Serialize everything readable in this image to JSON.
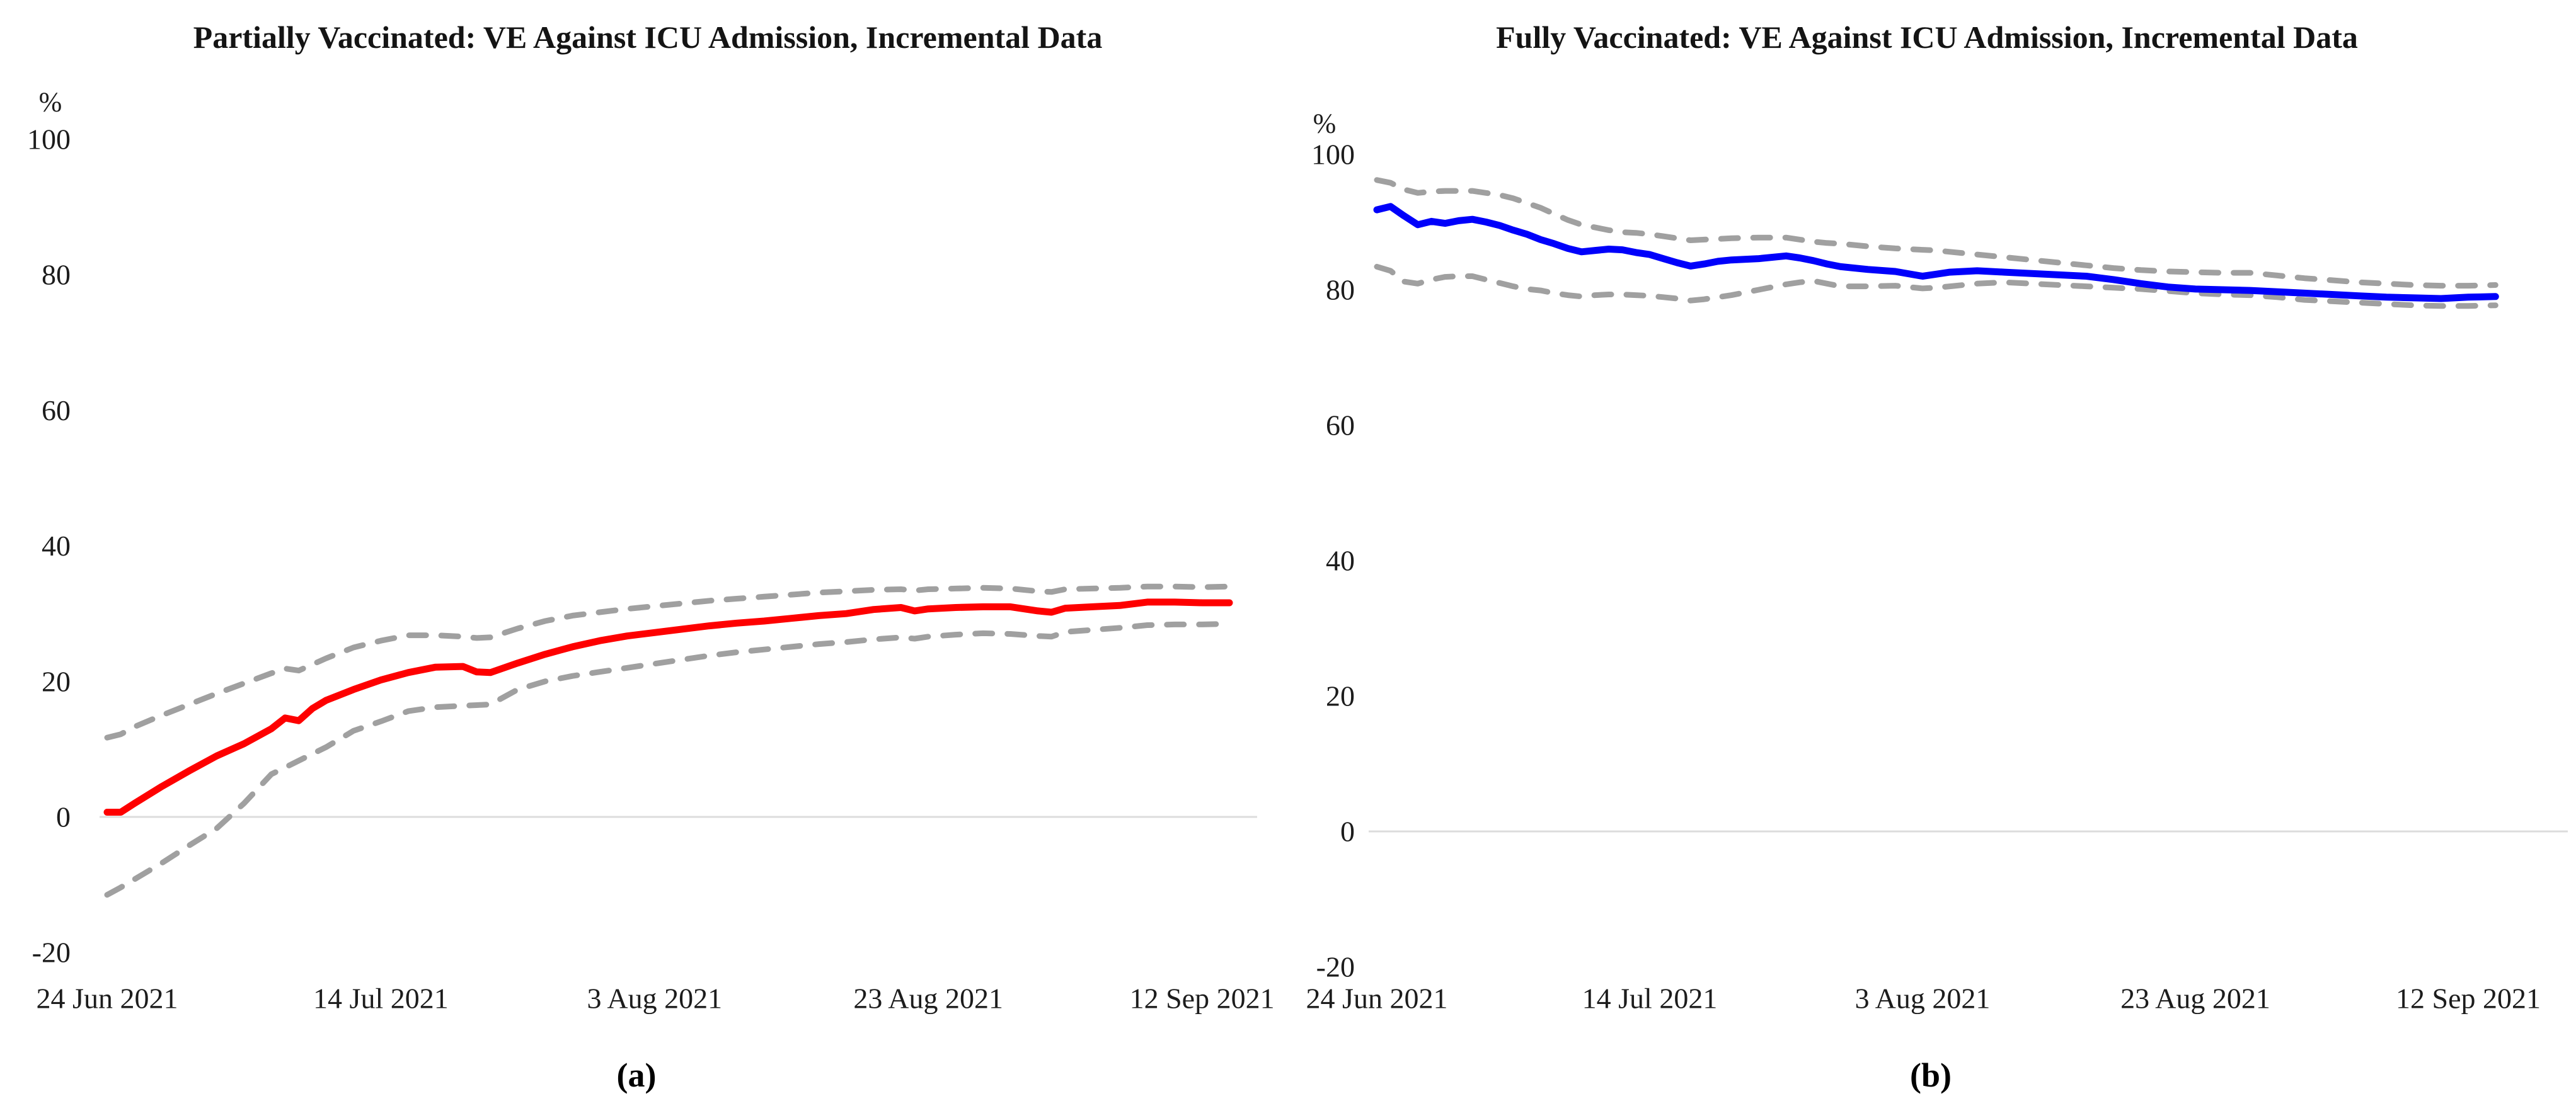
{
  "figure": {
    "captions": [
      "(a)",
      "(b)"
    ],
    "background_color": "#ffffff",
    "zero_gridline_color": "#dcdcdc",
    "ci_line_color": "#a0a0a0",
    "text_color": "#141414"
  },
  "chart_data": [
    {
      "type": "line",
      "title": "Partially Vaccinated: VE Against ICU Admission, Incremental Data",
      "y_unit": "%",
      "ylim": [
        -20,
        100
      ],
      "y_ticks": [
        100,
        80,
        60,
        40,
        20,
        0,
        -20
      ],
      "grid": "zero-line-only",
      "legend": "none",
      "x_ticks": [
        {
          "day": 0,
          "label": "24 Jun 2021"
        },
        {
          "day": 20,
          "label": "14 Jul 2021"
        },
        {
          "day": 40,
          "label": "3 Aug 2021"
        },
        {
          "day": 60,
          "label": "23 Aug 2021"
        },
        {
          "day": 80,
          "label": "12 Sep 2021"
        }
      ],
      "series": [
        {
          "name": "VE point estimate",
          "color": "#fe0000",
          "style": "solid",
          "days": [
            0,
            1,
            2,
            4,
            6,
            8,
            10,
            12,
            13,
            14,
            15,
            16,
            18,
            20,
            22,
            24,
            26,
            27,
            28,
            30,
            32,
            34,
            36,
            38,
            40,
            42,
            44,
            46,
            48,
            50,
            52,
            54,
            56,
            58,
            59,
            60,
            62,
            64,
            66,
            68,
            69,
            70,
            72,
            74,
            76,
            78,
            80,
            82
          ],
          "values": [
            0.7,
            0.7,
            2.0,
            4.5,
            6.8,
            9.0,
            10.8,
            13.0,
            14.6,
            14.2,
            16.0,
            17.2,
            18.8,
            20.2,
            21.3,
            22.1,
            22.2,
            21.4,
            21.3,
            22.7,
            24.0,
            25.1,
            26.0,
            26.7,
            27.2,
            27.7,
            28.2,
            28.6,
            28.9,
            29.3,
            29.7,
            30.0,
            30.6,
            30.9,
            30.4,
            30.7,
            30.9,
            31.0,
            31.0,
            30.4,
            30.2,
            30.8,
            31.0,
            31.2,
            31.7,
            31.7,
            31.6,
            31.6
          ]
        },
        {
          "name": "Upper 95% CI bound",
          "color": "#a0a0a0",
          "style": "dashed",
          "days": [
            0,
            1,
            2,
            4,
            6,
            8,
            10,
            12,
            13,
            14,
            15,
            16,
            18,
            20,
            22,
            24,
            26,
            27,
            28,
            30,
            32,
            34,
            36,
            38,
            40,
            42,
            44,
            46,
            48,
            50,
            52,
            54,
            56,
            58,
            59,
            60,
            62,
            64,
            66,
            68,
            69,
            70,
            72,
            74,
            76,
            78,
            80,
            82
          ],
          "values": [
            11.7,
            12.2,
            13.3,
            15.0,
            16.6,
            18.2,
            19.7,
            21.2,
            21.9,
            21.6,
            22.5,
            23.4,
            25.0,
            26.0,
            26.8,
            26.8,
            26.6,
            26.4,
            26.5,
            27.8,
            28.9,
            29.7,
            30.2,
            30.7,
            31.1,
            31.5,
            31.9,
            32.2,
            32.5,
            32.8,
            33.1,
            33.3,
            33.5,
            33.6,
            33.4,
            33.6,
            33.7,
            33.8,
            33.7,
            33.3,
            33.2,
            33.6,
            33.7,
            33.8,
            34.0,
            34.0,
            33.9,
            34.0
          ]
        },
        {
          "name": "Lower 95% CI bound",
          "color": "#a0a0a0",
          "style": "dashed",
          "days": [
            0,
            1,
            2,
            4,
            6,
            8,
            10,
            12,
            13,
            14,
            15,
            16,
            18,
            20,
            22,
            24,
            26,
            27,
            28,
            30,
            32,
            34,
            36,
            38,
            40,
            42,
            44,
            46,
            48,
            50,
            52,
            54,
            56,
            58,
            59,
            60,
            62,
            64,
            66,
            68,
            69,
            70,
            72,
            74,
            76,
            78,
            80,
            82
          ],
          "values": [
            -11.5,
            -10.4,
            -9.2,
            -6.8,
            -4.2,
            -1.7,
            2.0,
            6.3,
            7.3,
            8.3,
            9.3,
            10.3,
            12.7,
            14.1,
            15.6,
            16.2,
            16.4,
            16.5,
            16.6,
            18.8,
            20.0,
            20.8,
            21.4,
            22.0,
            22.6,
            23.2,
            23.8,
            24.3,
            24.7,
            25.1,
            25.5,
            25.8,
            26.2,
            26.5,
            26.3,
            26.6,
            26.9,
            27.1,
            27.0,
            26.7,
            26.6,
            27.3,
            27.6,
            27.9,
            28.3,
            28.4,
            28.4,
            28.5
          ]
        }
      ]
    },
    {
      "type": "line",
      "title": "Fully Vaccinated: VE Against ICU Admission, Incremental Data",
      "y_unit": "%",
      "ylim": [
        -20,
        100
      ],
      "y_ticks": [
        100,
        80,
        60,
        40,
        20,
        0,
        -20
      ],
      "grid": "zero-line-only",
      "legend": "none",
      "x_ticks": [
        {
          "day": 0,
          "label": "24 Jun 2021"
        },
        {
          "day": 20,
          "label": "14 Jul 2021"
        },
        {
          "day": 40,
          "label": "3 Aug 2021"
        },
        {
          "day": 60,
          "label": "23 Aug 2021"
        },
        {
          "day": 80,
          "label": "12 Sep 2021"
        }
      ],
      "series": [
        {
          "name": "VE point estimate",
          "color": "#0000fb",
          "style": "solid",
          "days": [
            0,
            1,
            2,
            3,
            4,
            5,
            6,
            7,
            8,
            9,
            10,
            11,
            12,
            13,
            14,
            15,
            16,
            17,
            18,
            19,
            20,
            21,
            22,
            23,
            24,
            25,
            26,
            28,
            30,
            31,
            32,
            33,
            34,
            36,
            38,
            40,
            41,
            42,
            44,
            46,
            48,
            50,
            52,
            54,
            56,
            58,
            60,
            62,
            64,
            66,
            68,
            70,
            72,
            74,
            76,
            78,
            80,
            82
          ],
          "values": [
            91.8,
            92.3,
            90.9,
            89.6,
            90.1,
            89.8,
            90.2,
            90.4,
            90.0,
            89.5,
            88.8,
            88.2,
            87.4,
            86.8,
            86.1,
            85.6,
            85.8,
            86.0,
            85.9,
            85.5,
            85.2,
            84.6,
            84.0,
            83.5,
            83.8,
            84.2,
            84.4,
            84.6,
            85.0,
            84.7,
            84.3,
            83.8,
            83.4,
            83.0,
            82.7,
            82.0,
            82.3,
            82.6,
            82.8,
            82.6,
            82.4,
            82.2,
            82.0,
            81.5,
            80.9,
            80.4,
            80.1,
            80.0,
            79.9,
            79.7,
            79.5,
            79.3,
            79.1,
            78.9,
            78.8,
            78.7,
            78.9,
            79.0
          ]
        },
        {
          "name": "Upper 95% CI bound",
          "color": "#a0a0a0",
          "style": "dashed",
          "days": [
            0,
            1,
            2,
            3,
            4,
            5,
            6,
            7,
            8,
            9,
            10,
            11,
            12,
            13,
            14,
            15,
            16,
            17,
            18,
            19,
            20,
            21,
            22,
            23,
            24,
            25,
            26,
            28,
            30,
            31,
            32,
            33,
            34,
            36,
            38,
            40,
            41,
            42,
            44,
            46,
            48,
            50,
            52,
            54,
            56,
            58,
            60,
            62,
            64,
            66,
            68,
            70,
            72,
            74,
            76,
            78,
            80,
            82
          ],
          "values": [
            96.2,
            95.8,
            94.8,
            94.3,
            94.5,
            94.6,
            94.6,
            94.6,
            94.3,
            94.0,
            93.5,
            92.8,
            92.1,
            91.2,
            90.3,
            89.6,
            89.2,
            88.8,
            88.5,
            88.4,
            88.2,
            87.9,
            87.6,
            87.3,
            87.4,
            87.5,
            87.6,
            87.7,
            87.7,
            87.4,
            87.1,
            86.9,
            86.8,
            86.4,
            86.1,
            85.9,
            85.8,
            85.6,
            85.2,
            84.8,
            84.4,
            84.0,
            83.6,
            83.2,
            82.9,
            82.7,
            82.6,
            82.5,
            82.5,
            82.1,
            81.7,
            81.4,
            81.1,
            80.9,
            80.7,
            80.6,
            80.6,
            80.7
          ]
        },
        {
          "name": "Lower 95% CI bound",
          "color": "#a0a0a0",
          "style": "dashed",
          "days": [
            0,
            1,
            2,
            3,
            4,
            5,
            6,
            7,
            8,
            9,
            10,
            11,
            12,
            13,
            14,
            15,
            16,
            17,
            18,
            19,
            20,
            21,
            22,
            23,
            24,
            25,
            26,
            28,
            30,
            31,
            32,
            33,
            34,
            36,
            38,
            40,
            41,
            42,
            44,
            46,
            48,
            50,
            52,
            54,
            56,
            58,
            60,
            62,
            64,
            66,
            68,
            70,
            72,
            74,
            76,
            78,
            80,
            82
          ],
          "values": [
            83.4,
            82.8,
            81.2,
            80.9,
            81.5,
            81.9,
            82.0,
            82.0,
            81.5,
            81.0,
            80.5,
            80.1,
            79.9,
            79.5,
            79.2,
            79.0,
            79.2,
            79.3,
            79.3,
            79.2,
            79.1,
            78.9,
            78.7,
            78.4,
            78.6,
            78.9,
            79.2,
            80.0,
            80.8,
            81.1,
            81.3,
            80.9,
            80.5,
            80.5,
            80.6,
            80.2,
            80.3,
            80.5,
            80.9,
            81.1,
            80.9,
            80.7,
            80.5,
            80.3,
            80.1,
            79.8,
            79.5,
            79.3,
            79.2,
            78.9,
            78.5,
            78.3,
            78.1,
            77.9,
            77.7,
            77.6,
            77.6,
            77.7
          ]
        }
      ]
    }
  ]
}
